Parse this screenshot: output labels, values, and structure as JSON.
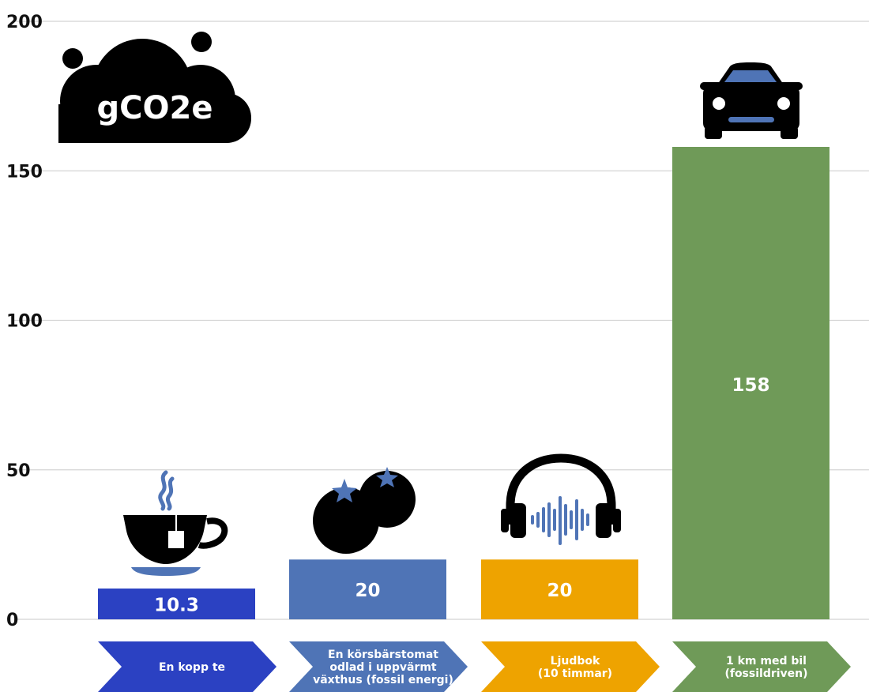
{
  "chart_data": {
    "type": "bar",
    "unit": "gCO2e",
    "categories": [
      "En kopp te",
      "En körsbärstomat odlad i uppvärmt växthus (fossil energi)",
      "Ljudbok (10 timmar)",
      "1 km med bil (fossildriven)"
    ],
    "category_lines": [
      [
        "En kopp te"
      ],
      [
        "En körsbärstomat",
        "odlad i uppvärmt",
        "växthus (fossil energi)"
      ],
      [
        "Ljudbok",
        "(10 timmar)"
      ],
      [
        "1 km med bil",
        "(fossildriven)"
      ]
    ],
    "values": [
      10.3,
      20,
      20,
      158
    ],
    "value_labels": [
      "10.3",
      "20",
      "20",
      "158"
    ],
    "colors": [
      "#2b41c2",
      "#4f74b6",
      "#eea300",
      "#6f9a58"
    ],
    "icons": [
      "tea-cup-icon",
      "tomato-icon",
      "headphones-icon",
      "car-icon"
    ],
    "yticks": [
      0,
      50,
      100,
      150,
      200
    ],
    "ylim": [
      0,
      200
    ],
    "grid": true,
    "legend": "none"
  }
}
